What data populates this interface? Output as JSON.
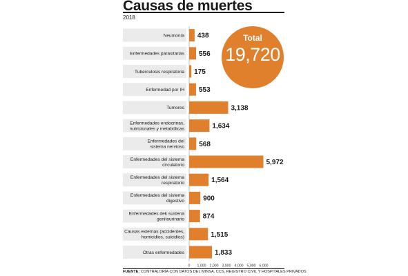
{
  "header": {
    "title": "Causas de muertes",
    "subtitle": "2018"
  },
  "total": {
    "label": "Total",
    "value": "19,720"
  },
  "source": {
    "label": "FUENTE:",
    "text": "CONTRALORÍA CON DATOS DEL MINSA, CCS, REGISTRO CIVIL Y HOSPITALES PRIVADOS"
  },
  "colors": {
    "bar": "#e07f2c",
    "label_box": "#ebebeb"
  },
  "chart_data": {
    "type": "bar",
    "orientation": "horizontal",
    "title": "Causas de muertes",
    "categories": [
      [
        "Neumonía"
      ],
      [
        "Enfermedades parasitarias"
      ],
      [
        "Tuberculosis respiratoria"
      ],
      [
        "Enfermedad por IH"
      ],
      [
        "Tumores"
      ],
      [
        "Enfermedades endocrinas,",
        "nutricionales y metabólicas"
      ],
      [
        "Enfermedades del",
        "sistema nervioso"
      ],
      [
        "Enfermedades del sistema",
        "circulatorio"
      ],
      [
        "Enfermedades del sistema",
        "respiratorio"
      ],
      [
        "Enfermedades del sistema",
        "digestivo"
      ],
      [
        "Enfermedades dek sustena",
        "genitourinario"
      ],
      [
        "Causas externas (accidentes,",
        "homicidios, suicidios)"
      ],
      [
        "Otras enfermedades"
      ]
    ],
    "values": [
      438,
      556,
      175,
      553,
      3138,
      1634,
      568,
      5972,
      1564,
      900,
      874,
      1515,
      1833
    ],
    "value_labels": [
      "438",
      "556",
      "175",
      "553",
      "3,138",
      "1,634",
      "568",
      "5,972",
      "1,564",
      "900",
      "874",
      "1,515",
      "1,833"
    ],
    "xlim": [
      0,
      6000
    ],
    "xticks": [
      0,
      1000,
      2000,
      3000,
      4000,
      5000,
      6000
    ],
    "xtick_labels": [
      "0",
      "1,000",
      "2,000",
      "3,000",
      "4,000",
      "5,000",
      "6,000"
    ],
    "xlabel": "",
    "ylabel": "",
    "grid": false,
    "legend": "none"
  }
}
